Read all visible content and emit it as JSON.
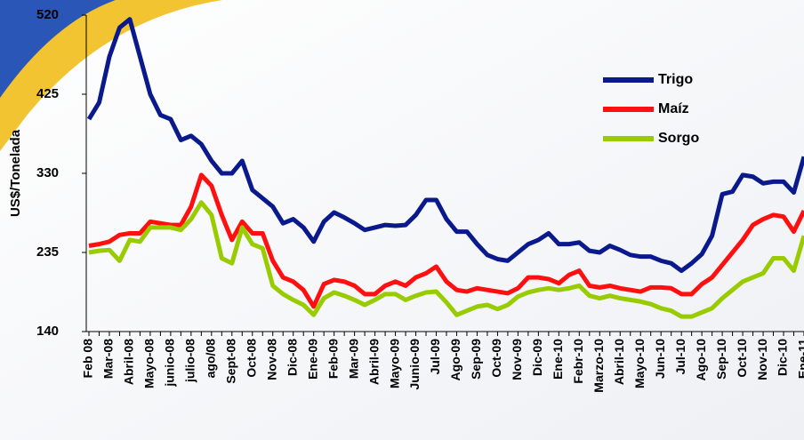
{
  "chart_data": {
    "type": "line",
    "y_label": "US$/Tonelada",
    "categories": [
      "Feb 08",
      null,
      "Mar-08",
      null,
      "Abril-08",
      null,
      "Mayo-08",
      null,
      "junio-08",
      null,
      "julio-08",
      null,
      "ago/08",
      null,
      "Sept-08",
      null,
      "Oct-08",
      null,
      "Nov-08",
      null,
      "Dic-08",
      null,
      "Ene-09",
      null,
      "Feb-09",
      null,
      "Mar-09",
      null,
      "Abril-09",
      null,
      "Mayo-09",
      null,
      "Junio-09",
      null,
      "Jul-09",
      null,
      "Ago-09",
      null,
      "Sep-09",
      null,
      "Oct-09",
      null,
      "Nov-09",
      null,
      "Dic-09",
      null,
      "Ene-10",
      null,
      "Febr-10",
      null,
      "Marzo-10",
      null,
      "Abril-10",
      null,
      "Mayo-10",
      null,
      "Jun-10",
      null,
      "Jul-10",
      null,
      "Ago-10",
      null,
      "Sep-10",
      null,
      "Oct-10",
      null,
      "Nov-10",
      null,
      "Dic-10",
      null,
      "Ene-11"
    ],
    "series": [
      {
        "name": "Trigo",
        "color": "#0a1a8c",
        "values": [
          395,
          415,
          470,
          505,
          515,
          470,
          425,
          400,
          395,
          370,
          375,
          365,
          345,
          330,
          330,
          345,
          310,
          300,
          290,
          270,
          275,
          265,
          248,
          272,
          283,
          277,
          270,
          262,
          265,
          268,
          267,
          268,
          280,
          298,
          298,
          275,
          260,
          260,
          245,
          232,
          227,
          225,
          235,
          245,
          250,
          258,
          245,
          245,
          247,
          237,
          235,
          243,
          238,
          232,
          230,
          230,
          225,
          222,
          213,
          222,
          233,
          255,
          305,
          308,
          328,
          326,
          318,
          320,
          320,
          307,
          350
        ]
      },
      {
        "name": "Maíz",
        "color": "#ff1010",
        "values": [
          243,
          245,
          248,
          256,
          258,
          258,
          272,
          270,
          268,
          268,
          290,
          328,
          315,
          280,
          250,
          272,
          258,
          258,
          225,
          205,
          200,
          190,
          170,
          197,
          202,
          200,
          195,
          185,
          185,
          195,
          200,
          195,
          205,
          210,
          218,
          200,
          190,
          188,
          192,
          190,
          188,
          186,
          192,
          205,
          205,
          203,
          198,
          208,
          213,
          195,
          193,
          195,
          192,
          190,
          188,
          193,
          193,
          192,
          185,
          185,
          197,
          205,
          220,
          235,
          250,
          268,
          275,
          280,
          278,
          260,
          285
        ]
      },
      {
        "name": "Sorgo",
        "color": "#99cc00",
        "values": [
          235,
          237,
          238,
          225,
          250,
          248,
          265,
          265,
          265,
          262,
          275,
          295,
          280,
          228,
          222,
          265,
          245,
          240,
          195,
          185,
          178,
          172,
          160,
          180,
          187,
          183,
          178,
          172,
          178,
          185,
          185,
          178,
          183,
          187,
          188,
          175,
          160,
          165,
          170,
          172,
          167,
          172,
          182,
          187,
          190,
          192,
          190,
          192,
          195,
          183,
          180,
          183,
          180,
          178,
          176,
          173,
          168,
          165,
          158,
          158,
          163,
          168,
          180,
          190,
          200,
          205,
          210,
          228,
          228,
          213,
          255
        ]
      }
    ],
    "ylim": [
      140,
      520
    ],
    "yticks": [
      140,
      235,
      330,
      425,
      520
    ]
  }
}
